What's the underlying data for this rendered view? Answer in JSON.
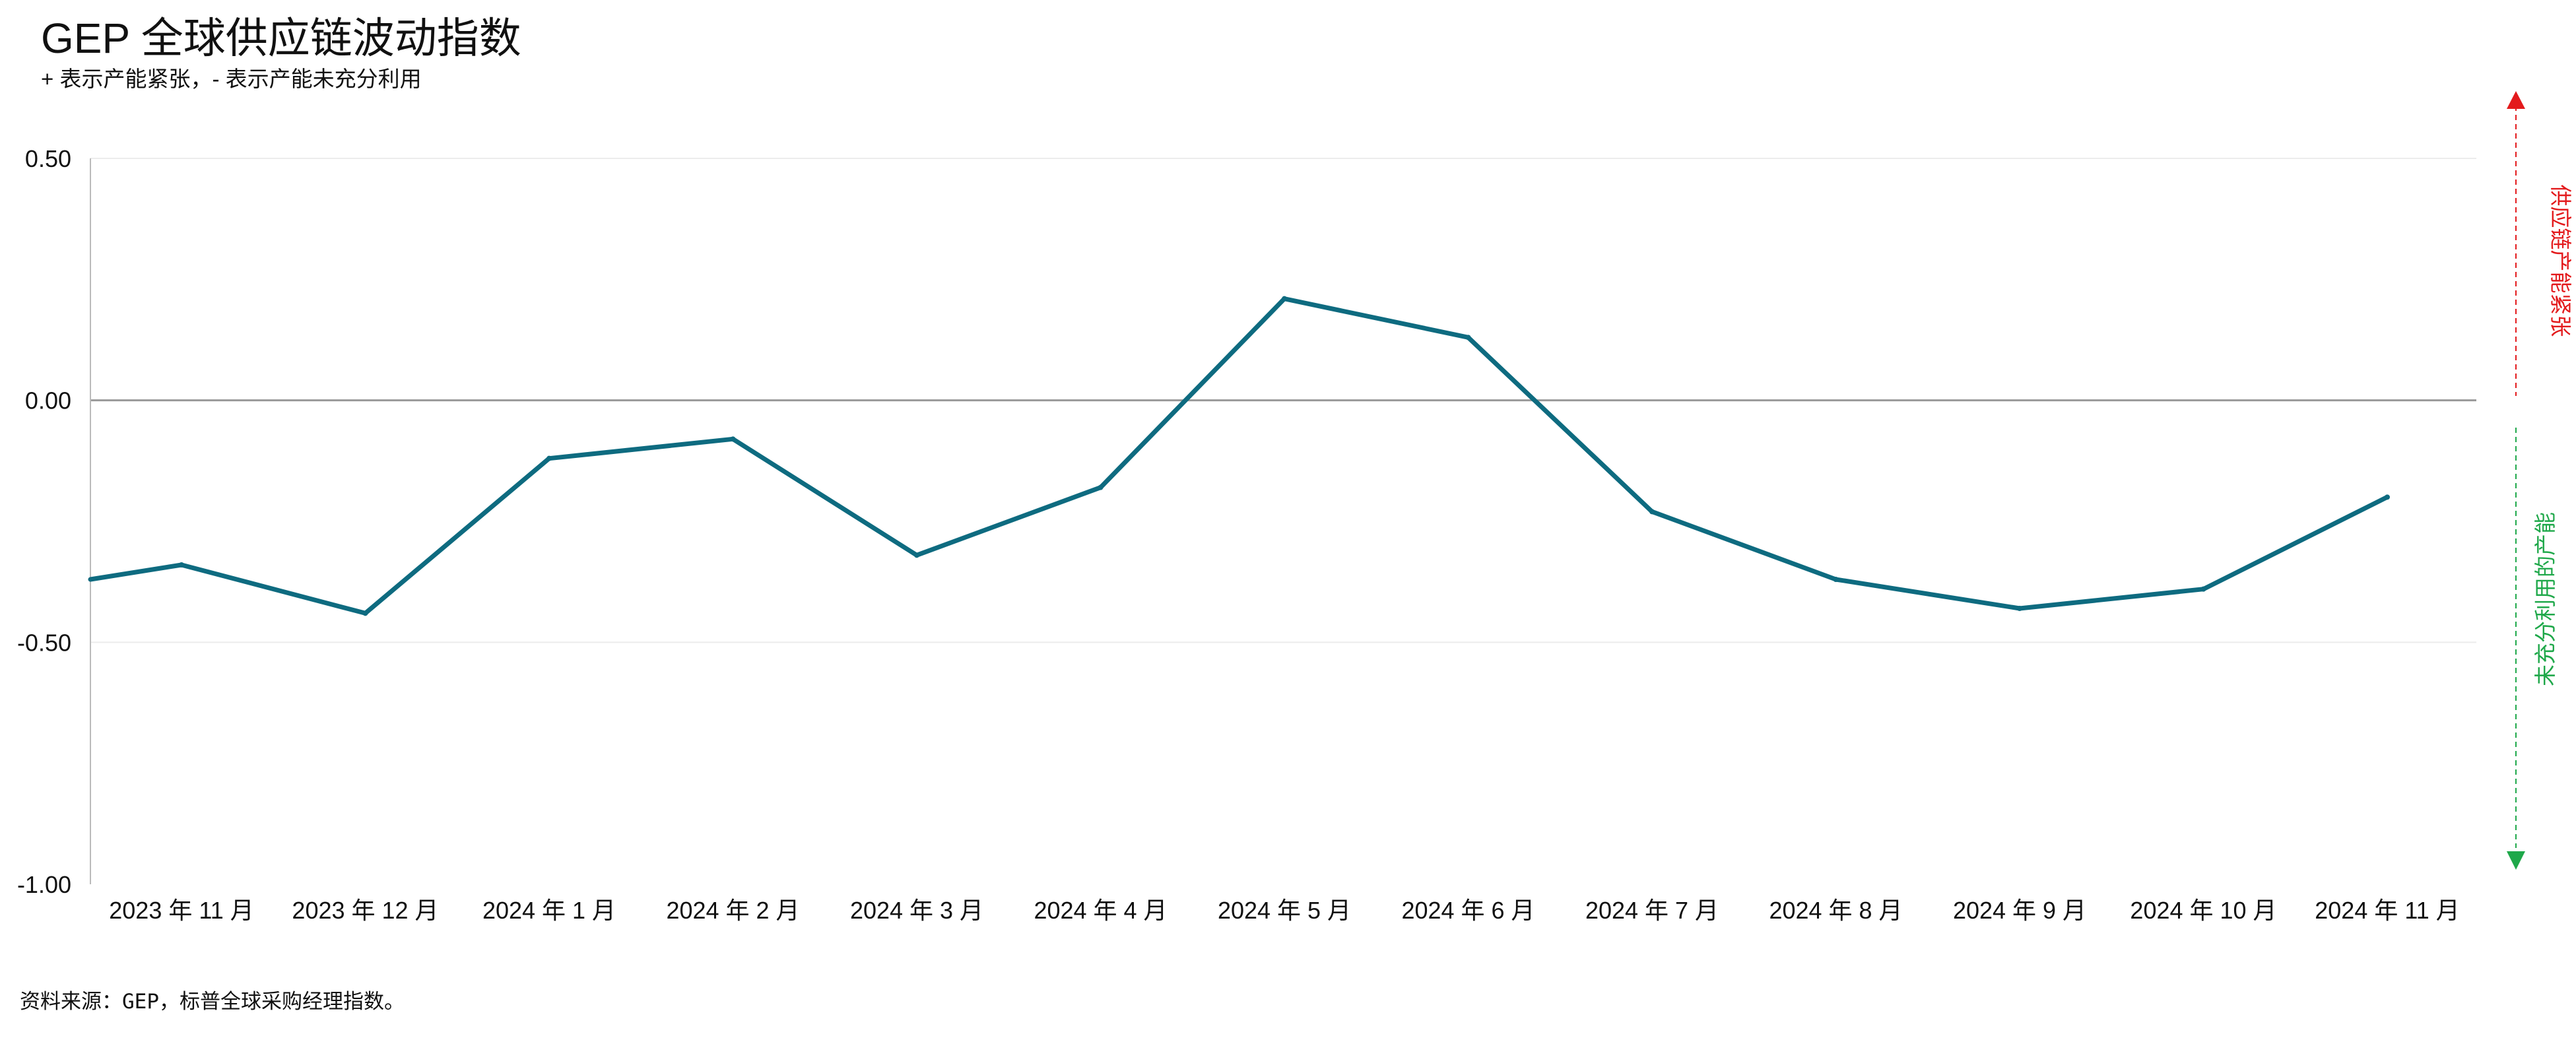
{
  "title": "GEP 全球供应链波动指数",
  "subtitle": "+ 表示产能紧张，- 表示产能未充分利用",
  "source": "资料来源：GEP，标普全球采购经理指数。",
  "side_labels": {
    "up": "供应链产能紧张",
    "down": "未充分利用的产能"
  },
  "colors": {
    "line": "#0e6b80",
    "up": "#e31a1c",
    "down": "#1fa84a",
    "zero": "#999999",
    "grid": "#ececec"
  },
  "chart_data": {
    "type": "line",
    "categories": [
      "2023 年 11 月",
      "2023 年 12 月",
      "2024 年 1 月",
      "2024 年 2 月",
      "2024 年 3 月",
      "2024 年 4 月",
      "2024 年 5 月",
      "2024 年 6 月",
      "2024 年 7 月",
      "2024 年 8 月",
      "2024 年 9 月",
      "2024 年 10 月",
      "2024 年 11 月"
    ],
    "start_value": -0.37,
    "values": [
      -0.34,
      -0.44,
      -0.12,
      -0.08,
      -0.32,
      -0.18,
      0.21,
      0.13,
      -0.23,
      -0.37,
      -0.43,
      -0.39,
      -0.2
    ],
    "yticks": [
      0.5,
      0.0,
      -0.5,
      -1.0
    ],
    "ytick_labels": [
      "0.50",
      "0.00",
      "-0.50",
      "-1.00"
    ],
    "ylim": [
      -1.0,
      0.5
    ],
    "grid": true,
    "legend": "none"
  }
}
